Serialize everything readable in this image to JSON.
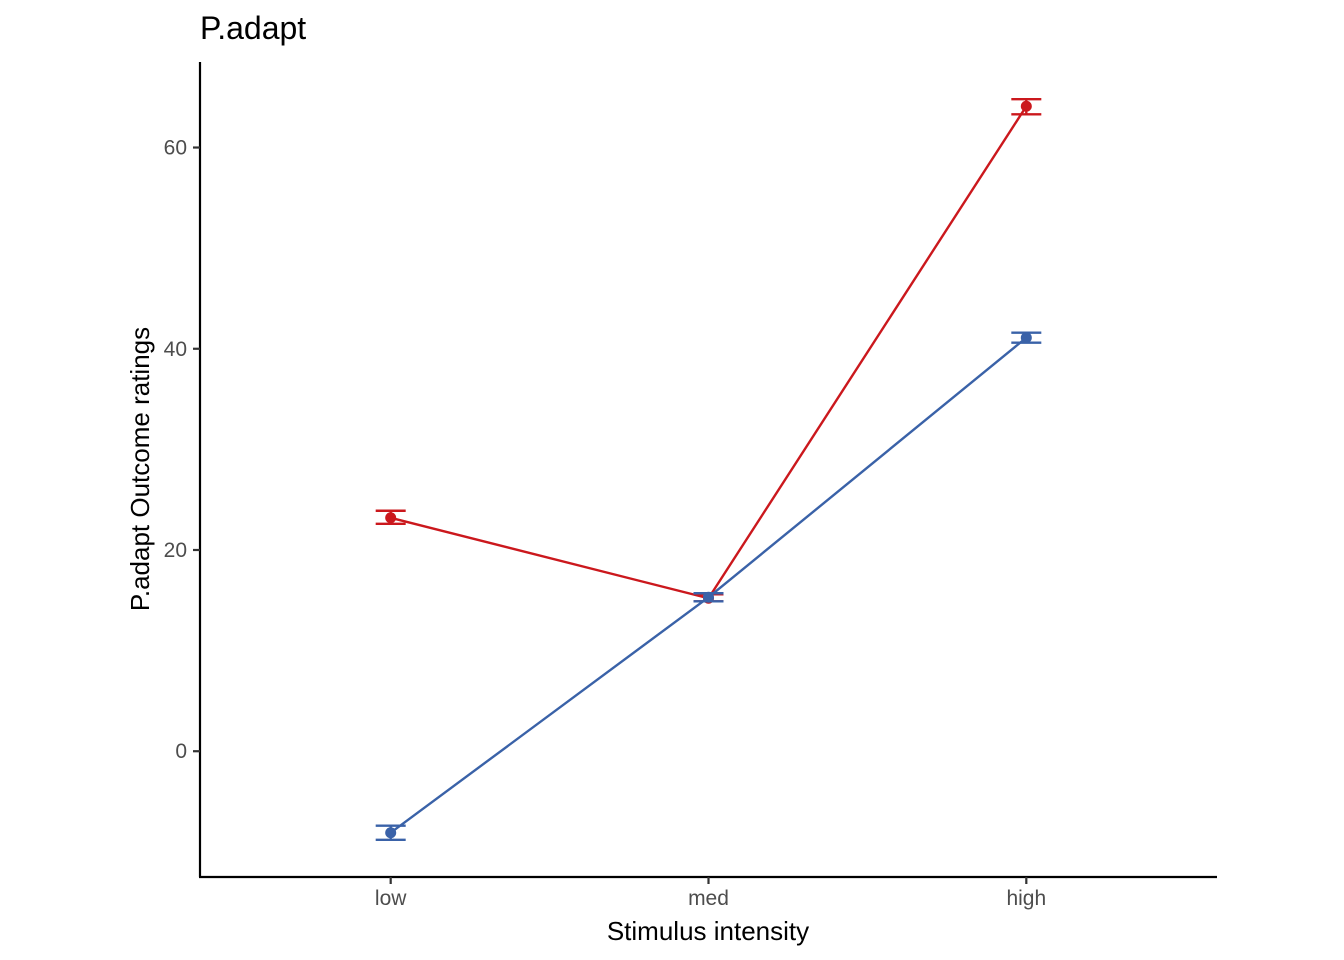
{
  "chart_data": {
    "type": "line",
    "title": "P.adapt",
    "xlabel": "Stimulus intensity",
    "ylabel": "P.adapt Outcome ratings",
    "categories": [
      "low",
      "med",
      "high"
    ],
    "ylim": [
      -12.5,
      68.5
    ],
    "yticks": [
      0,
      20,
      40,
      60
    ],
    "grid": false,
    "legend": "none",
    "series": [
      {
        "color": "#cb181d",
        "values": [
          23.2,
          15.2,
          64.1
        ],
        "error_low": [
          22.6,
          14.9,
          63.3
        ],
        "error_high": [
          23.9,
          15.6,
          64.8
        ]
      },
      {
        "color": "#3a62a8",
        "values": [
          -8.1,
          15.3,
          41.1
        ],
        "error_low": [
          -8.8,
          14.9,
          40.6
        ],
        "error_high": [
          -7.4,
          15.7,
          41.6
        ]
      }
    ]
  }
}
